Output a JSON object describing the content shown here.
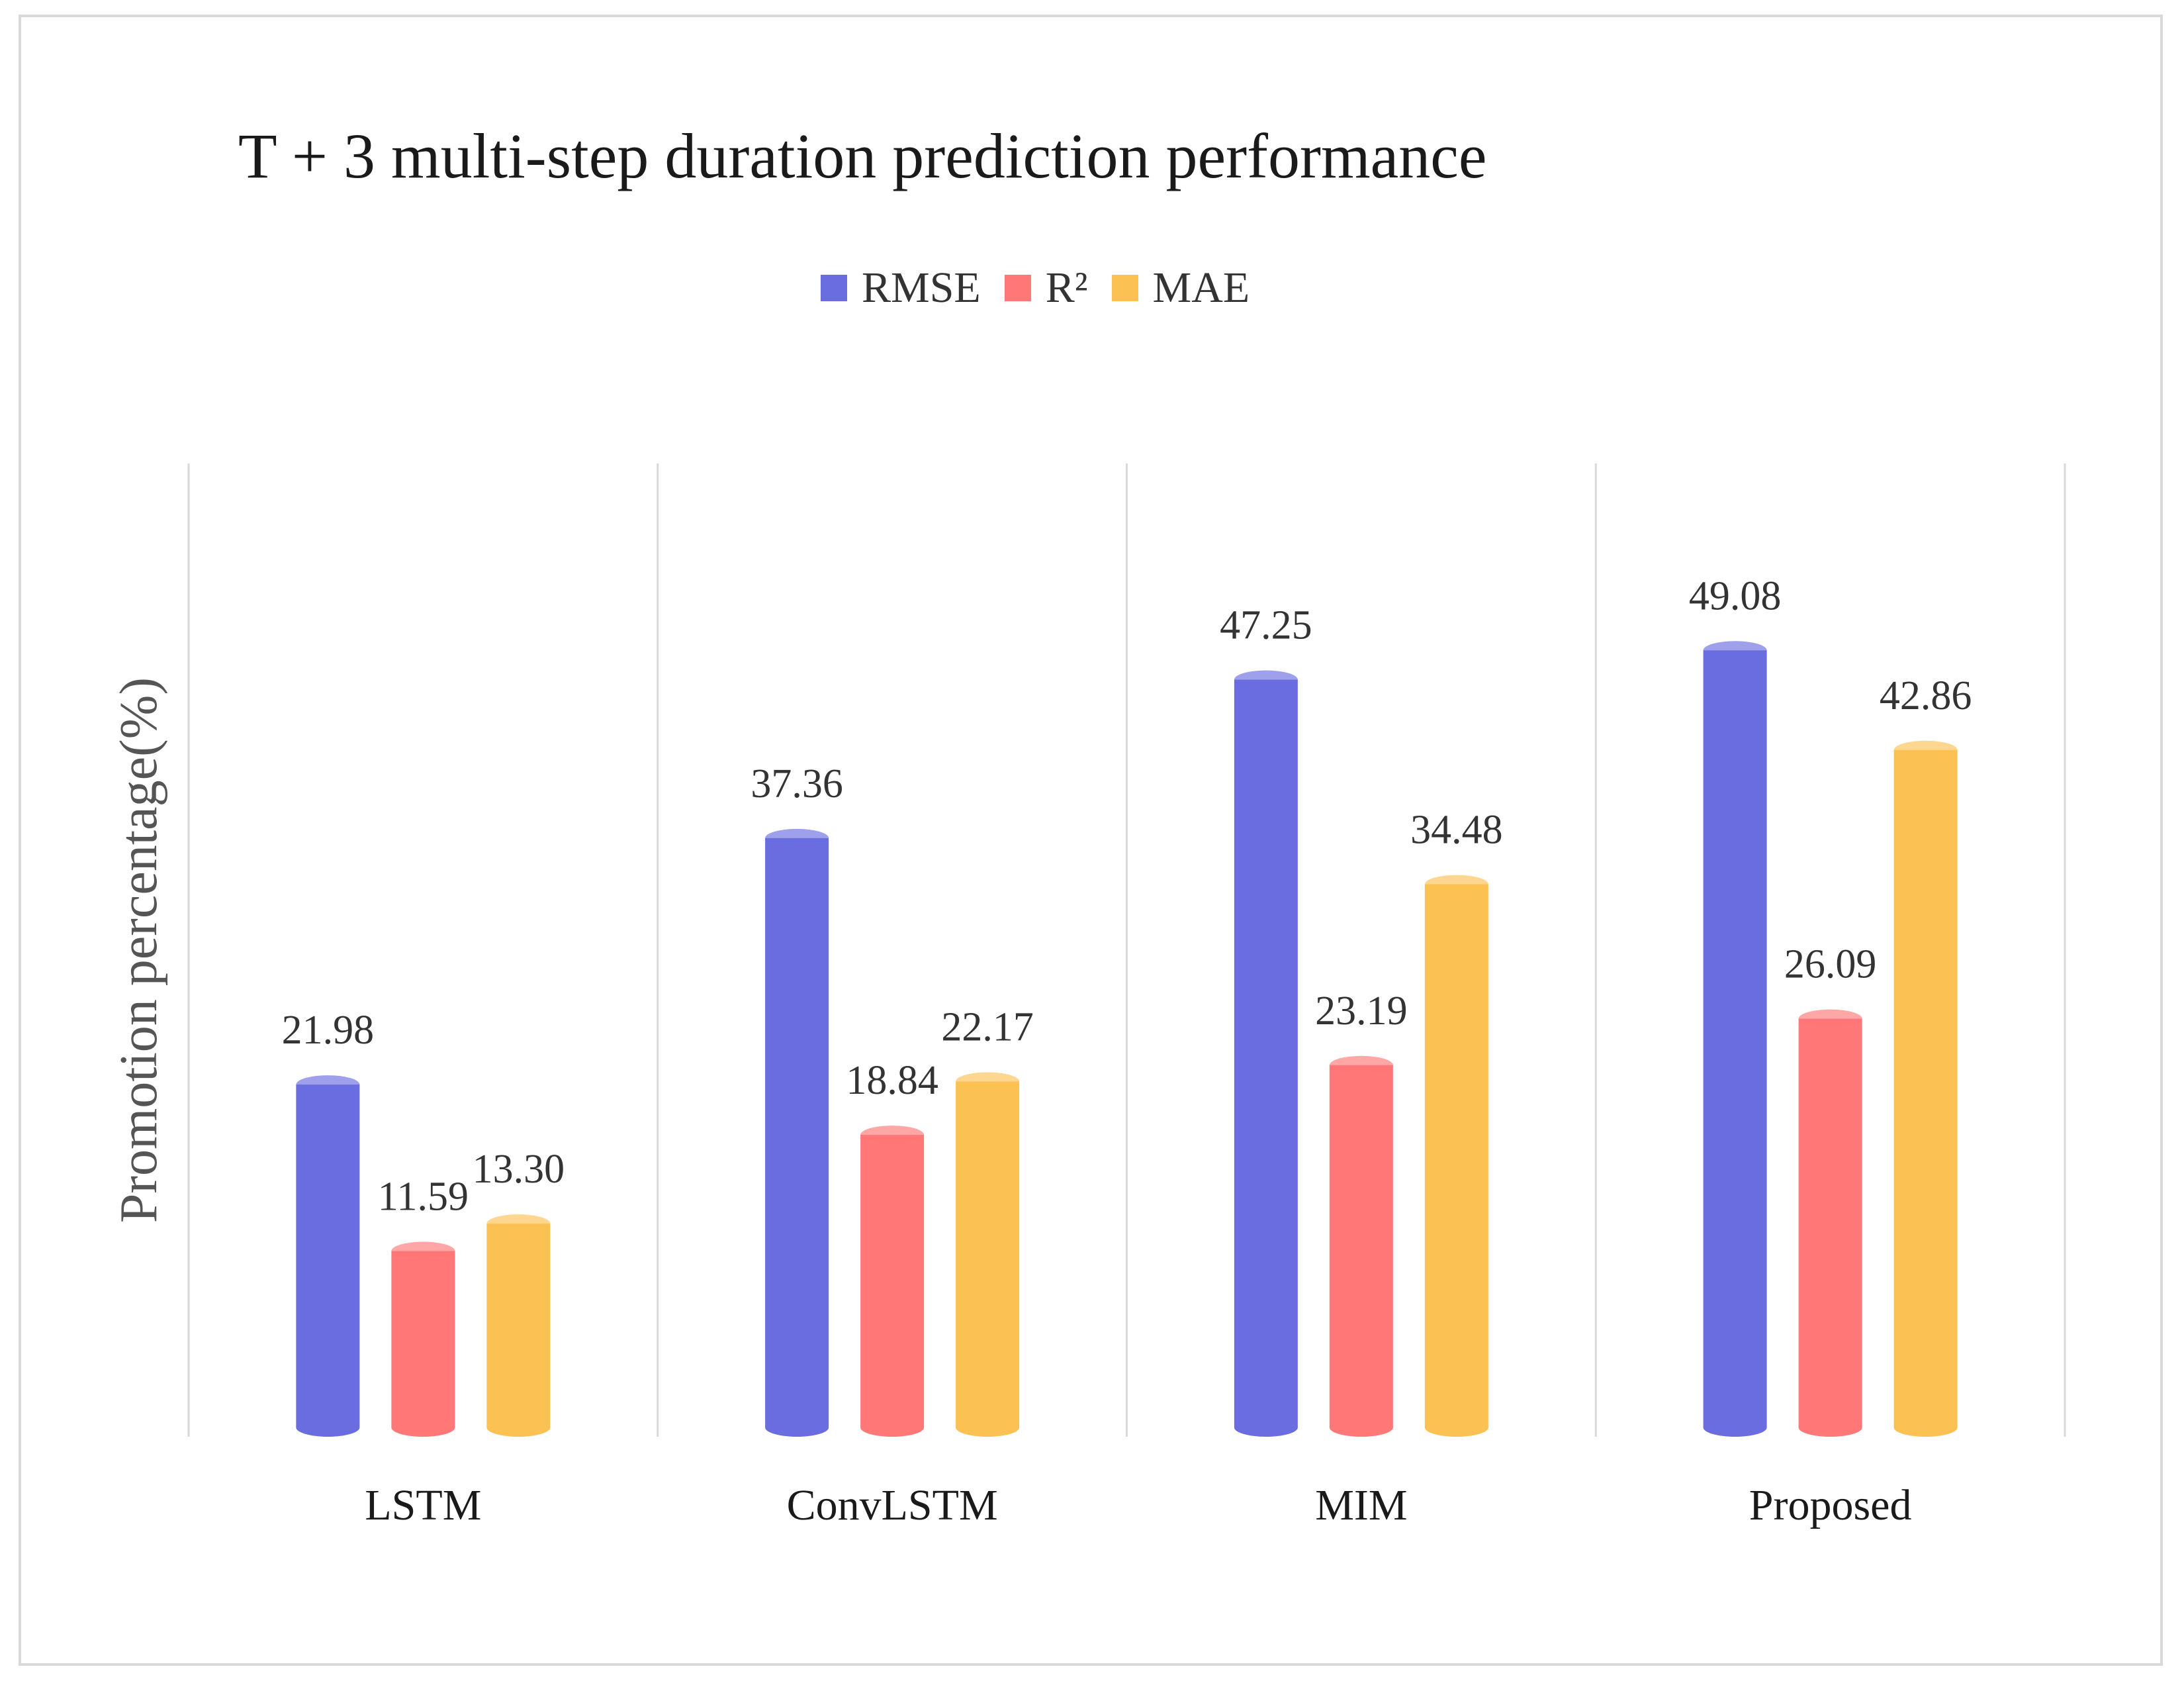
{
  "chart_data": {
    "type": "bar",
    "title": "T + 3 multi-step duration prediction performance",
    "xlabel": "",
    "ylabel": "Promotion percentage(%)",
    "categories": [
      "LSTM",
      "ConvLSTM",
      "MIM",
      "Proposed"
    ],
    "series": [
      {
        "name": "RMSE",
        "values": [
          21.98,
          37.36,
          47.25,
          49.08
        ],
        "labels": [
          "21.98",
          "37.36",
          "47.25",
          "49.08"
        ],
        "color": "#6a6de0"
      },
      {
        "name": "R²",
        "values": [
          11.59,
          18.84,
          23.19,
          26.09
        ],
        "labels": [
          "11.59",
          "18.84",
          "23.19",
          "26.09"
        ],
        "color": "#ff7777"
      },
      {
        "name": "MAE",
        "values": [
          13.3,
          22.17,
          34.48,
          42.86
        ],
        "labels": [
          "13.30",
          "22.17",
          "34.48",
          "42.86"
        ],
        "color": "#fcc153"
      }
    ],
    "ylim": [
      0,
      60
    ],
    "grid": "vertical",
    "legend": "top-center"
  }
}
